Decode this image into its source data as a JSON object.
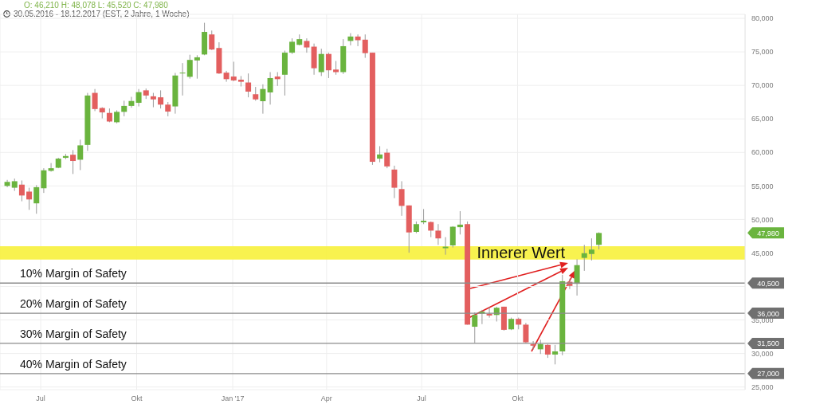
{
  "chart_data": {
    "type": "candlestick",
    "title": "O: 46,210  H: 48,078  L: 45,520  C: 47,980",
    "subtitle": "30.05.2016 - 18.12.2017  (EST, 2 Jahre, 1 Woche)",
    "x": [
      "2016-05-30",
      "2016-06-06",
      "2016-06-13",
      "2016-06-20",
      "2016-06-27",
      "2016-07-04",
      "2016-07-11",
      "2016-07-18",
      "2016-07-25",
      "2016-08-01",
      "2016-08-08",
      "2016-08-15",
      "2016-08-22",
      "2016-08-29",
      "2016-09-05",
      "2016-09-12",
      "2016-09-19",
      "2016-09-26",
      "2016-10-03",
      "2016-10-10",
      "2016-10-17",
      "2016-10-24",
      "2016-10-31",
      "2016-11-07",
      "2016-11-14",
      "2016-11-21",
      "2016-11-28",
      "2016-12-05",
      "2016-12-12",
      "2016-12-19",
      "2016-12-26",
      "2017-01-02",
      "2017-01-09",
      "2017-01-16",
      "2017-01-23",
      "2017-01-30",
      "2017-02-06",
      "2017-02-13",
      "2017-02-20",
      "2017-02-27",
      "2017-03-06",
      "2017-03-13",
      "2017-03-20",
      "2017-03-27",
      "2017-04-03",
      "2017-04-10",
      "2017-04-17",
      "2017-04-24",
      "2017-05-01",
      "2017-05-08",
      "2017-05-15",
      "2017-05-22",
      "2017-05-29",
      "2017-06-05",
      "2017-06-12",
      "2017-06-19",
      "2017-06-26",
      "2017-07-03",
      "2017-07-10",
      "2017-07-17",
      "2017-07-24",
      "2017-07-31",
      "2017-08-07",
      "2017-08-14",
      "2017-08-21",
      "2017-08-28",
      "2017-09-04",
      "2017-09-11",
      "2017-09-18",
      "2017-09-25",
      "2017-10-02",
      "2017-10-09",
      "2017-10-16",
      "2017-10-23",
      "2017-10-30",
      "2017-11-06",
      "2017-11-13",
      "2017-11-20",
      "2017-11-27",
      "2017-12-04",
      "2017-12-11",
      "2017-12-18"
    ],
    "ohlc": [
      [
        55000,
        55900,
        54800,
        55600
      ],
      [
        54730,
        56090,
        54260,
        55700
      ],
      [
        55190,
        55810,
        52710,
        53570
      ],
      [
        54150,
        54730,
        51430,
        52980
      ],
      [
        52400,
        55120,
        50850,
        54810
      ],
      [
        54650,
        57640,
        53950,
        57330
      ],
      [
        57250,
        58410,
        57130,
        57640
      ],
      [
        57710,
        59190,
        57640,
        59070
      ],
      [
        59190,
        59770,
        58990,
        59460
      ],
      [
        59650,
        60350,
        56780,
        58720
      ],
      [
        58910,
        61900,
        57360,
        61050
      ],
      [
        61120,
        68880,
        60230,
        68490
      ],
      [
        68880,
        69460,
        66160,
        66470
      ],
      [
        66630,
        66740,
        65080,
        65970
      ],
      [
        65890,
        66550,
        64500,
        64610
      ],
      [
        64500,
        66280,
        64340,
        66050
      ],
      [
        66050,
        67710,
        65390,
        66940
      ],
      [
        66940,
        68290,
        66670,
        67670
      ],
      [
        67400,
        69460,
        66860,
        68990
      ],
      [
        69260,
        69530,
        67980,
        68490
      ],
      [
        68370,
        68880,
        66740,
        67910
      ],
      [
        68220,
        69260,
        66550,
        67130
      ],
      [
        67130,
        67520,
        65390,
        66090
      ],
      [
        66860,
        71860,
        65780,
        71470
      ],
      [
        71860,
        73330,
        68490,
        71900
      ],
      [
        71280,
        74570,
        71010,
        73800
      ],
      [
        73720,
        74500,
        71010,
        74190
      ],
      [
        74610,
        79340,
        74500,
        77980
      ],
      [
        77600,
        78180,
        75270,
        75350
      ],
      [
        75580,
        76430,
        71710,
        71780
      ],
      [
        71900,
        72170,
        70540,
        70930
      ],
      [
        71320,
        73530,
        70620,
        70740
      ],
      [
        70850,
        71400,
        69840,
        70540
      ],
      [
        70430,
        71780,
        68220,
        69070
      ],
      [
        68680,
        69770,
        67710,
        67910
      ],
      [
        67640,
        70160,
        65780,
        69460
      ],
      [
        68950,
        71980,
        67130,
        71090
      ],
      [
        71320,
        71980,
        69920,
        70930
      ],
      [
        71590,
        75190,
        68490,
        74880
      ],
      [
        74880,
        77020,
        74690,
        76510
      ],
      [
        76050,
        77600,
        75970,
        76900
      ],
      [
        76630,
        77020,
        74880,
        75660
      ],
      [
        75780,
        76240,
        71590,
        72560
      ],
      [
        71980,
        75470,
        71400,
        74690
      ],
      [
        74690,
        74880,
        71090,
        72250
      ],
      [
        72360,
        73640,
        71590,
        71980
      ],
      [
        71980,
        76900,
        71710,
        75850
      ],
      [
        76630,
        77790,
        75970,
        77290
      ],
      [
        77290,
        77600,
        75850,
        76740
      ],
      [
        76820,
        77600,
        74110,
        74810
      ],
      [
        74880,
        74880,
        58140,
        58600
      ],
      [
        59070,
        60930,
        58530,
        59690
      ],
      [
        59960,
        60540,
        57640,
        57910
      ],
      [
        57440,
        58020,
        53180,
        54730
      ],
      [
        54530,
        55700,
        50540,
        52020
      ],
      [
        52090,
        52090,
        45040,
        48060
      ],
      [
        48140,
        49690,
        47950,
        49300
      ],
      [
        49570,
        51550,
        49300,
        49810
      ],
      [
        49610,
        49690,
        47360,
        48330
      ],
      [
        48330,
        49300,
        46200,
        47170
      ],
      [
        45700,
        47360,
        44730,
        45930
      ],
      [
        46120,
        48990,
        45810,
        48910
      ],
      [
        48840,
        51240,
        47750,
        49220
      ],
      [
        49300,
        49690,
        34300,
        34300
      ],
      [
        33990,
        36120,
        31550,
        35740
      ],
      [
        35930,
        36510,
        34380,
        36240
      ],
      [
        35930,
        36900,
        35350,
        35660
      ],
      [
        35740,
        36980,
        34770,
        36820
      ],
      [
        36980,
        36980,
        33410,
        33530
      ],
      [
        33600,
        35350,
        33490,
        35160
      ],
      [
        35160,
        35350,
        33600,
        34300
      ],
      [
        34300,
        34570,
        31550,
        31670
      ],
      [
        31400,
        31860,
        30580,
        31160
      ],
      [
        30620,
        32050,
        29920,
        31400
      ],
      [
        31280,
        31400,
        29340,
        29840
      ],
      [
        29840,
        31280,
        28370,
        30310
      ],
      [
        30310,
        41740,
        29730,
        40780
      ],
      [
        40700,
        41160,
        39610,
        40080
      ],
      [
        40390,
        44070,
        38640,
        43180
      ],
      [
        44260,
        46200,
        42330,
        44960
      ],
      [
        44840,
        47170,
        43880,
        45500
      ],
      [
        46210,
        48078,
        45520,
        47980
      ]
    ],
    "xlim": [
      "2016-05-23",
      "2018-05-07"
    ],
    "xticks": [
      {
        "value": "2016-07-01",
        "label": "Jul"
      },
      {
        "value": "2016-10-01",
        "label": "Okt"
      },
      {
        "value": "2017-01-01",
        "label": "Jan '17"
      },
      {
        "value": "2017-04-01",
        "label": "Apr"
      },
      {
        "value": "2017-07-01",
        "label": "Jul"
      },
      {
        "value": "2017-10-01",
        "label": "Okt"
      }
    ],
    "ylim": [
      24600,
      80600
    ],
    "yticks": [
      {
        "value": 25000,
        "label": "25,000"
      },
      {
        "value": 30000,
        "label": "30,000"
      },
      {
        "value": 35000,
        "label": "35,000"
      },
      {
        "value": 40000,
        "label": null
      },
      {
        "value": 45000,
        "label": "45,000"
      },
      {
        "value": 50000,
        "label": "50,000"
      },
      {
        "value": 55000,
        "label": "55,000"
      },
      {
        "value": 60000,
        "label": "60,000"
      },
      {
        "value": 65000,
        "label": "65,000"
      },
      {
        "value": 70000,
        "label": "70,000"
      },
      {
        "value": 75000,
        "label": "75,000"
      },
      {
        "value": 80000,
        "label": "80,000"
      }
    ],
    "grid": true,
    "ref_lines": [
      {
        "axis": "y",
        "value": 40500,
        "label": "10% Margin of Safety",
        "color": "#8c8c8c"
      },
      {
        "axis": "y",
        "value": 36000,
        "label": "20% Margin of Safety",
        "color": "#8c8c8c"
      },
      {
        "axis": "y",
        "value": 31500,
        "label": "30% Margin of Safety",
        "color": "#8c8c8c"
      },
      {
        "axis": "y",
        "value": 27000,
        "label": "40% Margin of Safety",
        "color": "#8c8c8c"
      }
    ],
    "bands": [
      {
        "axis": "y",
        "from": 44000,
        "to": 46000,
        "label": "Innerer Wert",
        "color": "#f7f13c"
      }
    ],
    "annotations": [
      "47,980",
      "40,500",
      "36,000",
      "31,500",
      "27,000"
    ]
  }
}
